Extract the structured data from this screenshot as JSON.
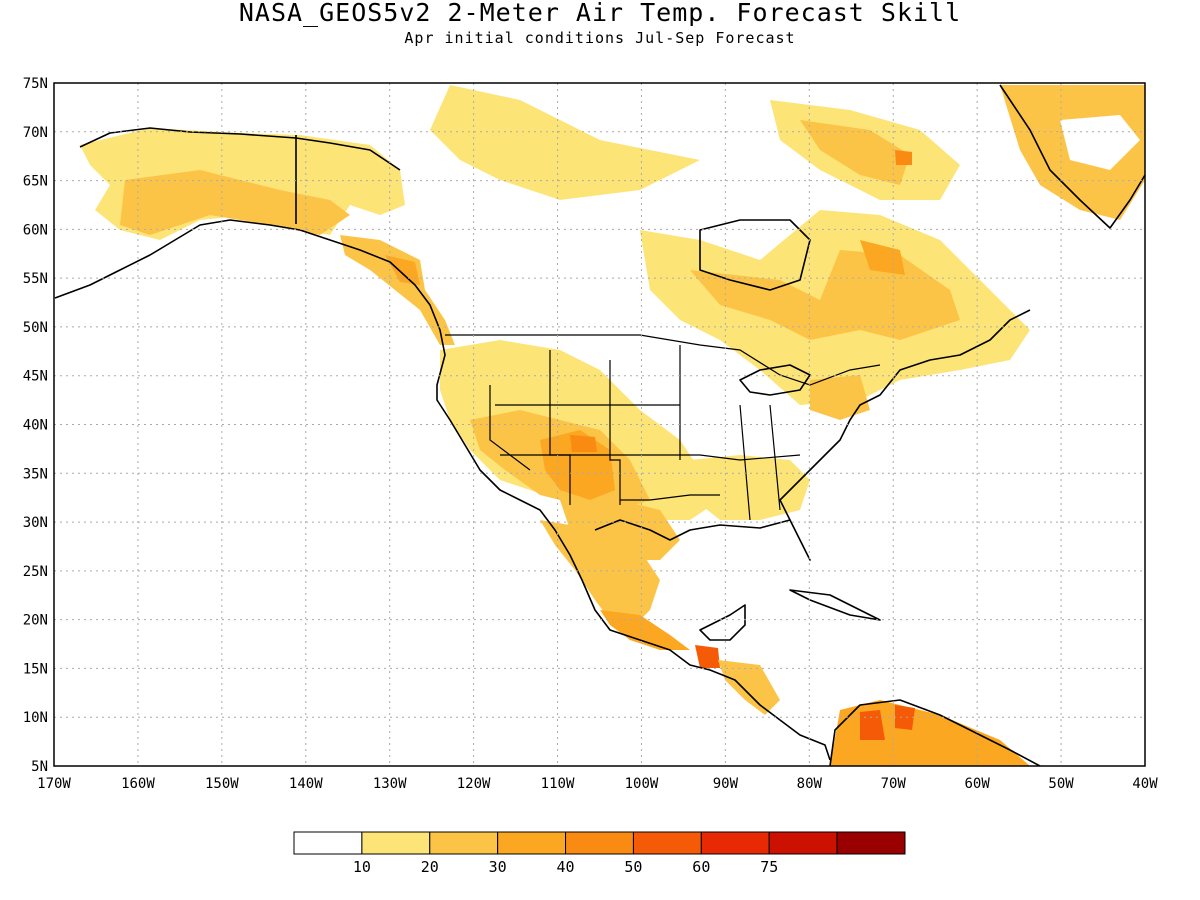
{
  "title": "NASA_GEOS5v2 2-Meter Air Temp. Forecast Skill",
  "subtitle": "Apr initial conditions  Jul-Sep Forecast",
  "map": {
    "lon_range": [
      -170,
      -40
    ],
    "lat_range": [
      5,
      75
    ],
    "lon_ticks": [
      "170W",
      "160W",
      "150W",
      "140W",
      "130W",
      "120W",
      "110W",
      "100W",
      "90W",
      "80W",
      "70W",
      "60W",
      "50W",
      "40W"
    ],
    "lat_ticks": [
      "5N",
      "10N",
      "15N",
      "20N",
      "25N",
      "30N",
      "35N",
      "40N",
      "45N",
      "50N",
      "55N",
      "60N",
      "65N",
      "70N",
      "75N"
    ],
    "gridlines": "dotted"
  },
  "colorbar": {
    "colors": [
      "#ffffff",
      "#fde477",
      "#fcc447",
      "#fba722",
      "#f98b12",
      "#f55b06",
      "#e82a04",
      "#cc1100",
      "#9b0000"
    ],
    "labels": [
      "10",
      "20",
      "30",
      "40",
      "50",
      "60",
      "75"
    ]
  }
}
